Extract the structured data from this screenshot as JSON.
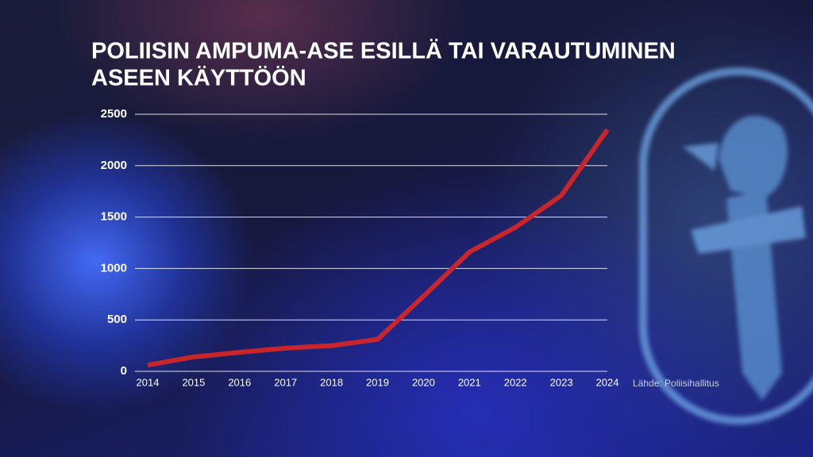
{
  "chart_data": {
    "type": "line",
    "title": [
      "POLIISIN AMPUMA-ASE ESILLÄ TAI VARAUTUMINEN",
      "ASEEN KÄYTTÖÖN"
    ],
    "source": "Lähde: Poliisihallitus",
    "categories": [
      "2014",
      "2015",
      "2016",
      "2017",
      "2018",
      "2019",
      "2020",
      "2021",
      "2022",
      "2023",
      "2024"
    ],
    "values": [
      60,
      140,
      185,
      225,
      250,
      310,
      730,
      1160,
      1400,
      1710,
      2350
    ],
    "color": "#c8262c",
    "ylim": [
      0,
      2500
    ],
    "yticks": [
      0,
      500,
      1000,
      1500,
      2000,
      2500
    ],
    "grid": true
  }
}
